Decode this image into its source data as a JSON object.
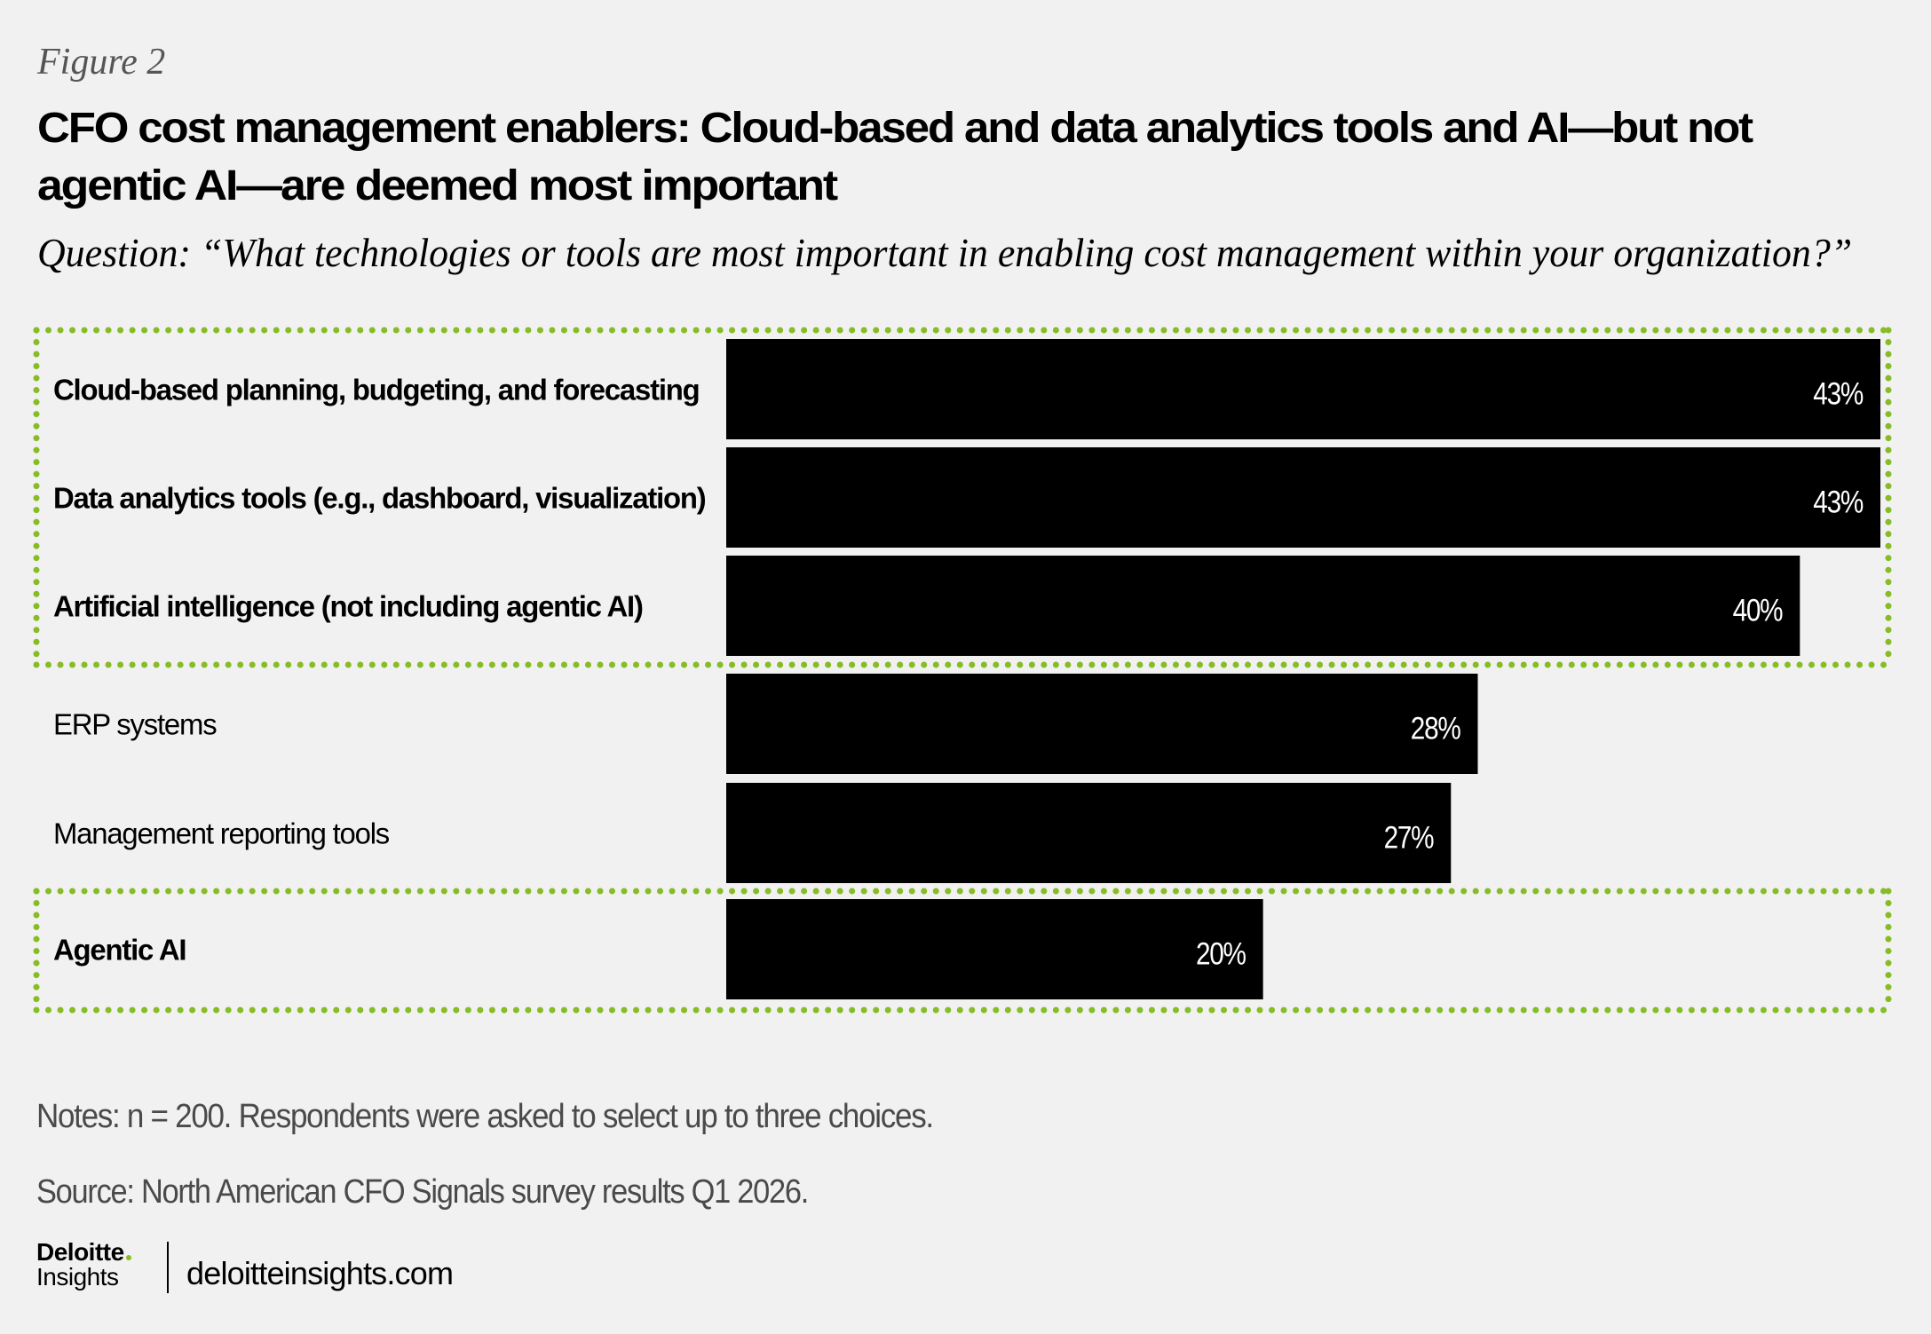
{
  "figure_label": "Figure 2",
  "title_lines": [
    "CFO cost management enablers: Cloud-based and data analytics tools and AI—but not",
    "agentic AI—are deemed most important"
  ],
  "question": "Question: “What technologies or tools are most important in enabling cost management within your organization?”",
  "colors": {
    "background": "#f1f1f1",
    "bar": "#000000",
    "highlight_border": "#86bc25",
    "value_text": "#ffffff",
    "footnote_text": "#4a4a4a"
  },
  "chart_data": {
    "type": "bar",
    "orientation": "horizontal",
    "title": "CFO cost management enablers: Cloud-based and data analytics tools and AI—but not agentic AI—are deemed most important",
    "xlabel": "",
    "ylabel": "",
    "unit": "%",
    "xlim": [
      0,
      43
    ],
    "grid": false,
    "categories": [
      "Cloud-based planning, budgeting, and forecasting",
      "Data analytics tools (e.g., dashboard, visualization)",
      "Artificial intelligence (not including agentic AI)",
      "ERP systems",
      "Management reporting tools",
      "Agentic AI"
    ],
    "values": [
      43,
      43,
      40,
      28,
      27,
      20
    ],
    "value_labels": [
      "43%",
      "43%",
      "40%",
      "28%",
      "27%",
      "20%"
    ],
    "bold_categories": [
      true,
      true,
      true,
      false,
      false,
      true
    ],
    "highlight_groups": [
      {
        "name": "top-enablers",
        "start_index": 0,
        "end_index": 2,
        "style": "dotted-green-box"
      },
      {
        "name": "agentic-ai",
        "start_index": 5,
        "end_index": 5,
        "style": "dotted-green-box"
      }
    ]
  },
  "footer": {
    "notes": "Notes: n = 200. Respondents were asked to select up to three choices.",
    "source": "Source: North American CFO Signals survey results Q1 2026.",
    "logo_brand": "Deloitte",
    "logo_sub": "Insights",
    "website": "deloitteinsights.com"
  }
}
